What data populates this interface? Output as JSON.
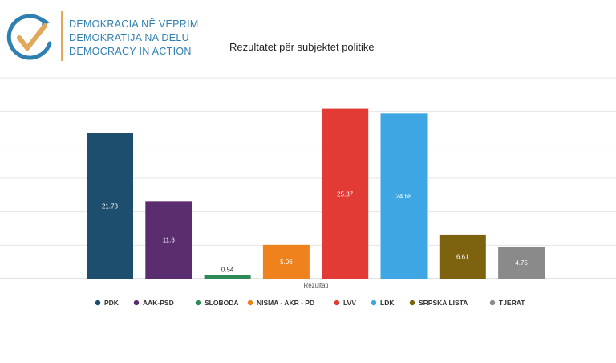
{
  "org": {
    "lines": [
      "DEMOKRACIA NË VEPRIM",
      "DEMOKRATIJA NA DELU",
      "DEMOCRACY IN ACTION"
    ],
    "logo_icon": "checkmark-circle-icon",
    "accent_colors": {
      "blue": "#2f7fb1",
      "gold": "#e2a85a"
    }
  },
  "chart_data": {
    "type": "bar",
    "title": "Rezultatet për subjektet politike",
    "xlabel": "Rezultati",
    "ylabel": "",
    "ylim": [
      0,
      30
    ],
    "grid": true,
    "legend_position": "bottom",
    "categories": [
      "PDK",
      "AAK-PSD",
      "SLOBODA",
      "NISMA - AKR - PD",
      "LVV",
      "LDK",
      "SRPSKA LISTA",
      "TJERAT"
    ],
    "values": [
      21.78,
      11.6,
      0.54,
      5.06,
      25.37,
      24.68,
      6.61,
      4.75
    ],
    "value_labels": [
      "21.78",
      "11.6",
      "0.54",
      "5.06",
      "25.37",
      "24.68",
      "6.61",
      "4.75"
    ],
    "colors": [
      "#1d4e6e",
      "#5a2d6e",
      "#2e8b57",
      "#f0821e",
      "#e23a34",
      "#3ea6e2",
      "#7d6210",
      "#8a8a8a"
    ]
  }
}
